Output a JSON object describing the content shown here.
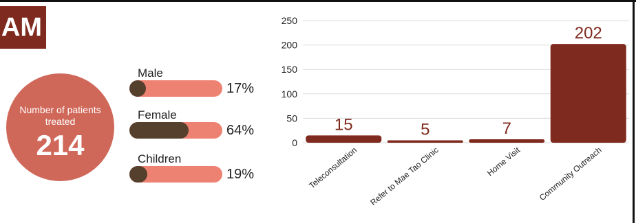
{
  "banner": {
    "text": "AM"
  },
  "patients": {
    "label": "Number of patients treated",
    "count": "214"
  },
  "demographics": [
    {
      "name": "Male",
      "percent_label": "17%",
      "fraction": 0.17
    },
    {
      "name": "Female",
      "percent_label": "64%",
      "fraction": 0.64
    },
    {
      "name": "Children",
      "percent_label": "19%",
      "fraction": 0.19
    }
  ],
  "colors": {
    "bar": "#7f2a1e",
    "data_label": "#7f2a1e",
    "circle": "#d0685a",
    "track": "#ee8272",
    "progress_fill": "#55402e",
    "banner": "#7f2a1e"
  },
  "chart_data": {
    "type": "bar",
    "categories": [
      "Teleconsultation",
      "Refer to Mae Tao Clinic",
      "Home Visit",
      "Community Outreach"
    ],
    "values": [
      15,
      5,
      7,
      202
    ],
    "data_labels": [
      "15",
      "5",
      "7",
      "202"
    ],
    "title": "",
    "xlabel": "",
    "ylabel": "",
    "ylim": [
      0,
      250
    ],
    "yticks": [
      0,
      50,
      100,
      150,
      200,
      250
    ],
    "grid": true,
    "legend": "none"
  }
}
